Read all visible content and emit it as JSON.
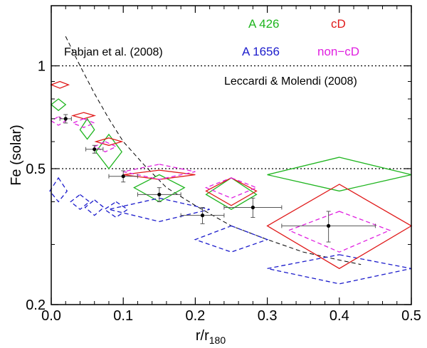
{
  "chart_data": {
    "type": "scatter",
    "xlabel": "r/r",
    "xlabel_sub": "180",
    "ylabel": "Fe (solar)",
    "xlim": [
      0.0,
      0.5
    ],
    "ylim": [
      0.2,
      1.5
    ],
    "yscale": "log",
    "x_ticks": [
      0.0,
      0.1,
      0.2,
      0.3,
      0.4,
      0.5
    ],
    "x_tick_labels": [
      "0.0",
      "0.1",
      "0.2",
      "0.3",
      "0.4",
      "0.5"
    ],
    "y_ticks_major": [
      0.2,
      0.5,
      1.0
    ],
    "y_tick_labels": [
      "0.2",
      "0.5",
      "1"
    ],
    "y_ticks_minor": [
      0.3,
      0.4,
      0.6,
      0.7,
      0.8,
      0.9
    ],
    "legend": {
      "a426": {
        "label": "A 426",
        "color": "#1fb51f"
      },
      "a1656": {
        "label": "A 1656",
        "color": "#1c1ccc"
      },
      "cd": {
        "label": "cD",
        "color": "#e01a1a"
      },
      "noncd": {
        "label": "non−cD",
        "color": "#e020e0"
      }
    },
    "annotations": {
      "fabjan": "Fabjan et al. (2008)",
      "leccardi": "Leccardi & Molendi (2008)"
    },
    "reference_lines": [
      {
        "y": 1.0,
        "style": "dotted"
      },
      {
        "y": 0.5,
        "style": "dotted"
      }
    ],
    "model_curve": [
      {
        "x": 0.02,
        "y": 1.22
      },
      {
        "x": 0.04,
        "y": 1.0
      },
      {
        "x": 0.06,
        "y": 0.83
      },
      {
        "x": 0.08,
        "y": 0.7
      },
      {
        "x": 0.1,
        "y": 0.6
      },
      {
        "x": 0.13,
        "y": 0.51
      },
      {
        "x": 0.16,
        "y": 0.44
      },
      {
        "x": 0.2,
        "y": 0.39
      },
      {
        "x": 0.25,
        "y": 0.34
      },
      {
        "x": 0.3,
        "y": 0.31
      },
      {
        "x": 0.35,
        "y": 0.285
      },
      {
        "x": 0.4,
        "y": 0.27
      },
      {
        "x": 0.43,
        "y": 0.262
      }
    ],
    "series": [
      {
        "name": "A 426",
        "color": "#1fb51f",
        "dash": "solid",
        "boxes": [
          {
            "x": 0.01,
            "y": 0.77,
            "dx": 0.01,
            "ylo": 0.74,
            "yhi": 0.8
          },
          {
            "x": 0.05,
            "y": 0.65,
            "dx": 0.01,
            "ylo": 0.61,
            "yhi": 0.7
          },
          {
            "x": 0.08,
            "y": 0.56,
            "dx": 0.018,
            "ylo": 0.5,
            "yhi": 0.63
          },
          {
            "x": 0.15,
            "y": 0.44,
            "dx": 0.035,
            "ylo": 0.4,
            "yhi": 0.48
          },
          {
            "x": 0.25,
            "y": 0.42,
            "dx": 0.035,
            "ylo": 0.38,
            "yhi": 0.47
          },
          {
            "x": 0.4,
            "y": 0.48,
            "dx": 0.1,
            "ylo": 0.43,
            "yhi": 0.54
          }
        ]
      },
      {
        "name": "A 1656",
        "color": "#1c1ccc",
        "dash": "dashed",
        "boxes": [
          {
            "x": 0.01,
            "y": 0.43,
            "dx": 0.012,
            "ylo": 0.4,
            "yhi": 0.47
          },
          {
            "x": 0.04,
            "y": 0.4,
            "dx": 0.013,
            "ylo": 0.38,
            "yhi": 0.42
          },
          {
            "x": 0.06,
            "y": 0.385,
            "dx": 0.013,
            "ylo": 0.365,
            "yhi": 0.405
          },
          {
            "x": 0.09,
            "y": 0.38,
            "dx": 0.016,
            "ylo": 0.36,
            "yhi": 0.4
          },
          {
            "x": 0.15,
            "y": 0.38,
            "dx": 0.07,
            "ylo": 0.35,
            "yhi": 0.41
          },
          {
            "x": 0.25,
            "y": 0.31,
            "dx": 0.05,
            "ylo": 0.285,
            "yhi": 0.34
          },
          {
            "x": 0.4,
            "y": 0.255,
            "dx": 0.1,
            "ylo": 0.23,
            "yhi": 0.28
          }
        ]
      },
      {
        "name": "cD",
        "color": "#e01a1a",
        "dash": "solid",
        "boxes": [
          {
            "x": 0.012,
            "y": 0.88,
            "dx": 0.012,
            "ylo": 0.86,
            "yhi": 0.9
          },
          {
            "x": 0.045,
            "y": 0.715,
            "dx": 0.015,
            "ylo": 0.7,
            "yhi": 0.73
          },
          {
            "x": 0.08,
            "y": 0.6,
            "dx": 0.018,
            "ylo": 0.585,
            "yhi": 0.615
          },
          {
            "x": 0.15,
            "y": 0.48,
            "dx": 0.05,
            "ylo": 0.465,
            "yhi": 0.495
          },
          {
            "x": 0.25,
            "y": 0.43,
            "dx": 0.035,
            "ylo": 0.39,
            "yhi": 0.47
          },
          {
            "x": 0.4,
            "y": 0.34,
            "dx": 0.1,
            "ylo": 0.255,
            "yhi": 0.45
          }
        ]
      },
      {
        "name": "non−cD",
        "color": "#e020e0",
        "dash": "dashed",
        "boxes": [
          {
            "x": 0.01,
            "y": 0.69,
            "dx": 0.01,
            "ylo": 0.67,
            "yhi": 0.71
          },
          {
            "x": 0.045,
            "y": 0.68,
            "dx": 0.015,
            "ylo": 0.66,
            "yhi": 0.7
          },
          {
            "x": 0.075,
            "y": 0.58,
            "dx": 0.015,
            "ylo": 0.56,
            "yhi": 0.6
          },
          {
            "x": 0.15,
            "y": 0.49,
            "dx": 0.05,
            "ylo": 0.465,
            "yhi": 0.515
          },
          {
            "x": 0.25,
            "y": 0.44,
            "dx": 0.035,
            "ylo": 0.41,
            "yhi": 0.47
          },
          {
            "x": 0.4,
            "y": 0.33,
            "dx": 0.07,
            "ylo": 0.285,
            "yhi": 0.375
          }
        ]
      }
    ],
    "measurements": [
      {
        "x": 0.02,
        "y": 0.7,
        "xerr": 0.008,
        "yerr": 0.02
      },
      {
        "x": 0.06,
        "y": 0.57,
        "xerr": 0.012,
        "yerr": 0.015
      },
      {
        "x": 0.1,
        "y": 0.475,
        "xerr": 0.02,
        "yerr": 0.018
      },
      {
        "x": 0.15,
        "y": 0.42,
        "xerr": 0.03,
        "yerr": 0.02
      },
      {
        "x": 0.21,
        "y": 0.365,
        "xerr": 0.03,
        "yerr": 0.02
      },
      {
        "x": 0.28,
        "y": 0.385,
        "xerr": 0.04,
        "yerr": 0.025
      },
      {
        "x": 0.385,
        "y": 0.34,
        "xerr": 0.065,
        "yerr": 0.035
      }
    ]
  }
}
